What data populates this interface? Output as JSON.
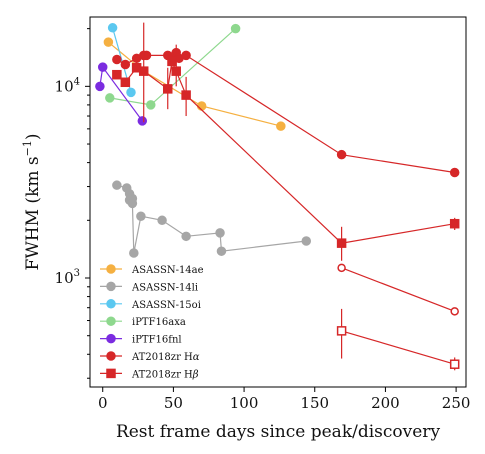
{
  "chart_data": {
    "type": "scatter",
    "title": "",
    "xlabel": "Rest frame days since peak/discovery",
    "ylabel_text": "FWHM (km s",
    "ylabel_exponent": "−1",
    "ylabel_close": ")",
    "xscale": "linear",
    "yscale": "log",
    "xlim": [
      -9,
      257
    ],
    "ylim": [
      270,
      23000
    ],
    "grid": false,
    "legend_position": "lower-left",
    "x_ticks": [
      {
        "value": 0,
        "label": "0"
      },
      {
        "value": 50,
        "label": "50"
      },
      {
        "value": 100,
        "label": "100"
      },
      {
        "value": 150,
        "label": "150"
      },
      {
        "value": 200,
        "label": "200"
      },
      {
        "value": 250,
        "label": "250"
      }
    ],
    "y_ticks": [
      {
        "value": 1000,
        "base": "10",
        "exp": "3"
      },
      {
        "value": 10000,
        "base": "10",
        "exp": "4"
      }
    ],
    "series": [
      {
        "name": "ASASSN-14ae",
        "color": "#f5b041",
        "marker": "circle",
        "filled": true,
        "connect": "order",
        "points": [
          [
            4,
            17000
          ],
          [
            29,
            12000
          ],
          [
            70,
            7900
          ],
          [
            126,
            6200
          ]
        ]
      },
      {
        "name": "ASASSN-14li",
        "color": "#a6a6a6",
        "marker": "circle",
        "filled": true,
        "connect": "order",
        "points": [
          [
            10,
            3050
          ],
          [
            17,
            2950
          ],
          [
            19,
            2750
          ],
          [
            19,
            2550
          ],
          [
            21,
            2600
          ],
          [
            21,
            2450
          ],
          [
            22,
            1350
          ],
          [
            27,
            2100
          ],
          [
            42,
            2000
          ],
          [
            59,
            1650
          ],
          [
            83,
            1720
          ],
          [
            84,
            1380
          ],
          [
            144,
            1560
          ]
        ]
      },
      {
        "name": "ASASSN-15oi",
        "color": "#5bc8f0",
        "marker": "circle",
        "filled": true,
        "connect": "order",
        "points": [
          [
            7,
            20200
          ],
          [
            20,
            9300
          ]
        ]
      },
      {
        "name": "iPTF16axa",
        "color": "#8ed88e",
        "marker": "circle",
        "filled": true,
        "connect": "order",
        "points": [
          [
            5,
            8700
          ],
          [
            34,
            8000
          ],
          [
            94,
            20000
          ]
        ]
      },
      {
        "name": "iPTF16fnl",
        "color": "#7b2ce0",
        "marker": "circle",
        "filled": true,
        "connect": "order",
        "points": [
          [
            -2,
            10000
          ],
          [
            0,
            12600
          ],
          [
            28,
            6600
          ]
        ]
      },
      {
        "name": "AT2018zr Hα",
        "color": "#d62728",
        "marker": "circle",
        "filled": true,
        "connect": "order",
        "points": [
          [
            10,
            13800
          ],
          [
            16,
            13000
          ],
          [
            24,
            14000
          ],
          [
            29,
            14500
          ],
          [
            31,
            14500
          ],
          [
            46,
            14500
          ],
          [
            49,
            14000
          ],
          [
            52,
            15000
          ],
          [
            54,
            14000
          ],
          [
            59,
            14500
          ],
          [
            169,
            4400
          ],
          [
            249,
            3550
          ]
        ]
      },
      {
        "name": "AT2018zr Hα broad",
        "color": "#d62728",
        "marker": "circle",
        "filled": false,
        "connect": "order",
        "legend": false,
        "points": [
          [
            169,
            1130
          ],
          [
            249,
            670
          ]
        ]
      },
      {
        "name": "AT2018zr Hβ",
        "color": "#d62728",
        "marker": "square",
        "filled": true,
        "connect": "order",
        "points": [
          [
            10,
            11500
          ],
          [
            16,
            10500
          ],
          [
            24,
            12500
          ],
          [
            29,
            12000
          ],
          [
            46,
            9700
          ],
          [
            49,
            13500
          ],
          [
            52,
            12000
          ],
          [
            59,
            9000
          ],
          [
            169,
            1520
          ],
          [
            249,
            1920
          ]
        ],
        "error_bars": [
          {
            "x": 29,
            "y_low": 6500,
            "y_high": 21500
          },
          {
            "x": 46,
            "y_low": 7600,
            "y_high": 12500
          },
          {
            "x": 52,
            "y_low": 10000,
            "y_high": 16500
          },
          {
            "x": 59,
            "y_low": 7000,
            "y_high": 11200
          },
          {
            "x": 169,
            "y_low": 1230,
            "y_high": 1850
          },
          {
            "x": 249,
            "y_low": 1780,
            "y_high": 2060
          }
        ]
      },
      {
        "name": "AT2018zr Hβ broad",
        "color": "#d62728",
        "marker": "square",
        "filled": false,
        "connect": "order",
        "legend": false,
        "points": [
          [
            169,
            530
          ],
          [
            249,
            355
          ]
        ],
        "error_bars": [
          {
            "x": 169,
            "y_low": 380,
            "y_high": 690
          },
          {
            "x": 249,
            "y_low": 330,
            "y_high": 385
          }
        ]
      }
    ],
    "legend": [
      {
        "label": "ASASSN-14ae",
        "color": "#f5b041",
        "marker": "circle"
      },
      {
        "label": "ASASSN-14li",
        "color": "#a6a6a6",
        "marker": "circle"
      },
      {
        "label": "ASASSN-15oi",
        "color": "#5bc8f0",
        "marker": "circle"
      },
      {
        "label": "iPTF16axa",
        "color": "#8ed88e",
        "marker": "circle"
      },
      {
        "label": "iPTF16fnl",
        "color": "#7b2ce0",
        "marker": "circle"
      },
      {
        "label_main": "AT2018zr H",
        "label_greek": "α",
        "color": "#d62728",
        "marker": "circle"
      },
      {
        "label_main": "AT2018zr H",
        "label_greek": "β",
        "color": "#d62728",
        "marker": "square"
      }
    ]
  }
}
